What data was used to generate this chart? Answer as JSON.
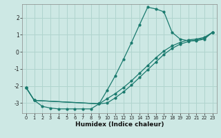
{
  "xlabel": "Humidex (Indice chaleur)",
  "background_color": "#cde8e4",
  "grid_color": "#b0d4ce",
  "line_color": "#1a7a6e",
  "xlim": [
    -0.5,
    23.5
  ],
  "ylim": [
    -3.6,
    2.8
  ],
  "xticks": [
    0,
    1,
    2,
    3,
    4,
    5,
    6,
    7,
    8,
    9,
    10,
    11,
    12,
    13,
    14,
    15,
    16,
    17,
    18,
    19,
    20,
    21,
    22,
    23
  ],
  "yticks": [
    -3,
    -2,
    -1,
    0,
    1,
    2
  ],
  "line1_x": [
    0,
    1,
    2,
    3,
    4,
    5,
    6,
    7,
    8,
    9,
    10,
    11,
    12,
    13,
    14,
    15,
    16,
    17,
    18,
    19,
    20,
    21,
    22,
    23
  ],
  "line1_y": [
    -2.1,
    -2.85,
    -3.2,
    -3.3,
    -3.35,
    -3.35,
    -3.35,
    -3.35,
    -3.35,
    -3.05,
    -2.25,
    -1.4,
    -0.45,
    0.55,
    1.6,
    2.62,
    2.52,
    2.35,
    1.15,
    0.75,
    0.65,
    0.65,
    0.75,
    1.15
  ],
  "line2_x": [
    0,
    1,
    9,
    10,
    11,
    12,
    13,
    14,
    15,
    16,
    17,
    18,
    19,
    20,
    21,
    22,
    23
  ],
  "line2_y": [
    -2.1,
    -2.85,
    -3.05,
    -2.75,
    -2.45,
    -2.1,
    -1.7,
    -1.25,
    -0.8,
    -0.35,
    0.05,
    0.35,
    0.55,
    0.7,
    0.75,
    0.85,
    1.15
  ],
  "line3_x": [
    0,
    1,
    9,
    10,
    11,
    12,
    13,
    14,
    15,
    16,
    17,
    18,
    19,
    20,
    21,
    22,
    23
  ],
  "line3_y": [
    -2.1,
    -2.85,
    -3.05,
    -3.0,
    -2.7,
    -2.35,
    -1.95,
    -1.5,
    -1.05,
    -0.6,
    -0.15,
    0.2,
    0.45,
    0.6,
    0.7,
    0.8,
    1.15
  ]
}
